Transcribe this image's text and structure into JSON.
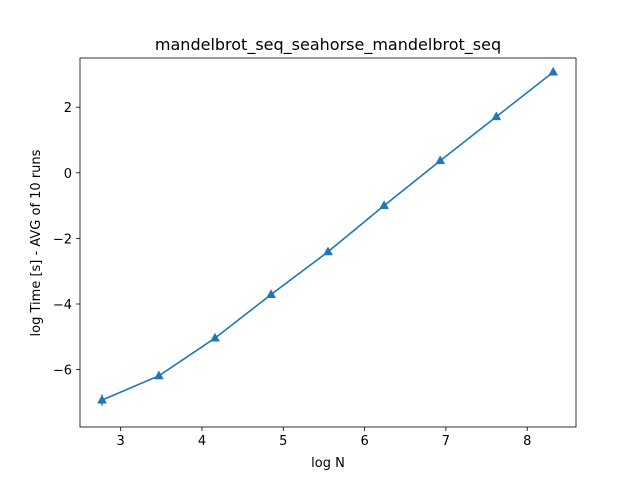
{
  "chart_data": {
    "type": "line",
    "title": "mandelbrot_seq_seahorse_mandelbrot_seq",
    "xlabel": "log N",
    "ylabel": "log Time  [s] - AVG of 10 runs",
    "xlim": [
      2.5,
      8.6
    ],
    "ylim": [
      -7.75,
      3.5
    ],
    "xticks": [
      3,
      4,
      5,
      6,
      7,
      8
    ],
    "yticks": [
      -6,
      -4,
      -2,
      0,
      2
    ],
    "ytick_labels": [
      "−6",
      "−4",
      "−2",
      "0",
      "2"
    ],
    "grid": false,
    "marker": "triangle",
    "color": "#1f77b4",
    "series": [
      {
        "x": [
          2.77,
          3.47,
          4.16,
          4.85,
          5.55,
          6.24,
          6.93,
          7.62,
          8.32
        ],
        "y": [
          -6.93,
          -6.19,
          -5.04,
          -3.71,
          -2.41,
          -1.0,
          0.37,
          1.71,
          3.07
        ],
        "yerr": [
          0.17,
          0.03,
          0.03,
          0.03,
          0.03,
          0.03,
          0.03,
          0.03,
          0.03
        ]
      }
    ]
  }
}
